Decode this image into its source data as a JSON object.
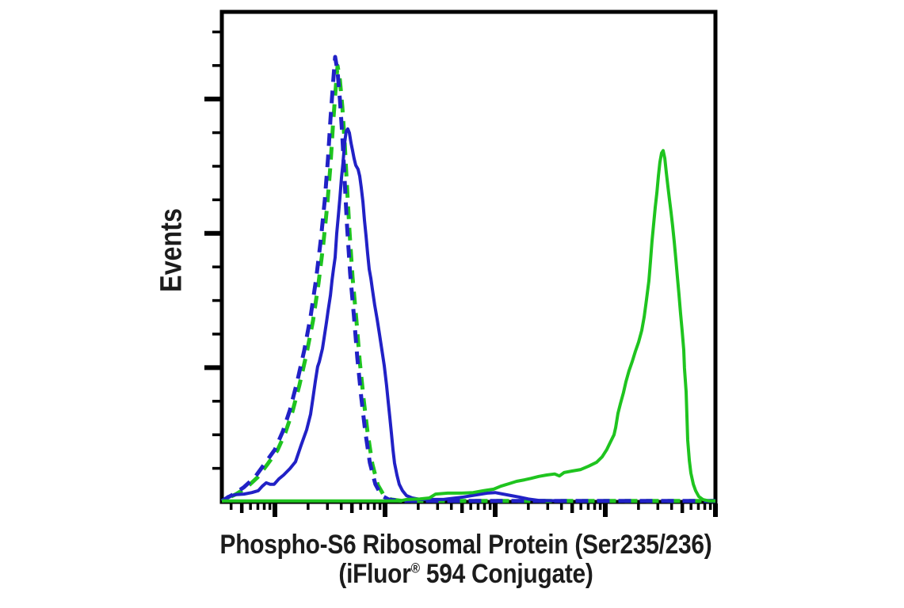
{
  "labels": {
    "ylabel": "Events",
    "xlabel_line1": "Phospho-S6 Ribosomal Protein (Ser235/236)",
    "xlabel_line2_pre": "(iFluor",
    "xlabel_reg_mark": "®",
    "xlabel_line2_post": " 594 Conjugate)"
  },
  "chart_data": {
    "type": "line",
    "subtype": "flow-cytometry-histogram-overlay",
    "title": "",
    "xlabel": "Phospho-S6 Ribosomal Protein (Ser235/236) (iFluor® 594 Conjugate)",
    "ylabel": "Events",
    "background": "#ffffff",
    "axis_color": "#000000",
    "legend": "none",
    "grid": false,
    "x_axis": {
      "scale": "log10",
      "visible_range_log": [
        0.518,
        5.0
      ],
      "major_tick_logs": [
        1,
        2,
        3,
        4,
        5
      ],
      "minor_ticks": "log decades 2-9, with 5 emphasized",
      "tick_labels_shown": false
    },
    "y_axis": {
      "scale": "linear",
      "range_fraction": [
        0,
        1
      ],
      "minor_tick_step_fraction": 0.0685,
      "major_every_n_minor": 4,
      "tick_labels_shown": false
    },
    "series": [
      {
        "id": "green-dashed",
        "name": "Green dashed histogram (overlaps blue dashed, left peak)",
        "color": "#1fc41f",
        "dashed": true,
        "dash_offset": 14,
        "peak": {
          "x_log": 1.57,
          "y_fraction": 0.89
        },
        "points": [
          [
            0.518,
            0.002
          ],
          [
            0.648,
            0.016
          ],
          [
            0.741,
            0.029
          ],
          [
            0.842,
            0.05
          ],
          [
            0.936,
            0.078
          ],
          [
            1.022,
            0.105
          ],
          [
            1.094,
            0.141
          ],
          [
            1.159,
            0.184
          ],
          [
            1.223,
            0.239
          ],
          [
            1.288,
            0.303
          ],
          [
            1.346,
            0.37
          ],
          [
            1.396,
            0.446
          ],
          [
            1.439,
            0.525
          ],
          [
            1.475,
            0.605
          ],
          [
            1.504,
            0.687
          ],
          [
            1.526,
            0.765
          ],
          [
            1.547,
            0.829
          ],
          [
            1.562,
            0.873
          ],
          [
            1.569,
            0.89
          ],
          [
            1.59,
            0.861
          ],
          [
            1.612,
            0.806
          ],
          [
            1.634,
            0.731
          ],
          [
            1.655,
            0.643
          ],
          [
            1.677,
            0.553
          ],
          [
            1.705,
            0.458
          ],
          [
            1.74,
            0.37
          ],
          [
            1.77,
            0.288
          ],
          [
            1.806,
            0.209
          ],
          [
            1.842,
            0.141
          ],
          [
            1.884,
            0.078
          ],
          [
            1.934,
            0.035
          ],
          [
            1.99,
            0.013
          ],
          [
            2.055,
            0.005
          ],
          [
            2.16,
            0.002
          ],
          [
            5.0,
            0.002
          ]
        ]
      },
      {
        "id": "blue-dashed",
        "name": "Blue dashed histogram (overlaps green dashed, left peak)",
        "color": "#2121c6",
        "dashed": true,
        "dash_offset": 0,
        "peak": {
          "x_log": 1.547,
          "y_fraction": 0.908
        },
        "points": [
          [
            0.518,
            0.002
          ],
          [
            0.626,
            0.016
          ],
          [
            0.719,
            0.03
          ],
          [
            0.82,
            0.051
          ],
          [
            0.914,
            0.08
          ],
          [
            1.0,
            0.107
          ],
          [
            1.072,
            0.144
          ],
          [
            1.137,
            0.188
          ],
          [
            1.201,
            0.244
          ],
          [
            1.266,
            0.309
          ],
          [
            1.324,
            0.378
          ],
          [
            1.374,
            0.455
          ],
          [
            1.417,
            0.536
          ],
          [
            1.453,
            0.617
          ],
          [
            1.482,
            0.701
          ],
          [
            1.504,
            0.781
          ],
          [
            1.525,
            0.846
          ],
          [
            1.54,
            0.891
          ],
          [
            1.547,
            0.908
          ],
          [
            1.568,
            0.879
          ],
          [
            1.59,
            0.822
          ],
          [
            1.612,
            0.746
          ],
          [
            1.633,
            0.656
          ],
          [
            1.655,
            0.564
          ],
          [
            1.683,
            0.467
          ],
          [
            1.718,
            0.378
          ],
          [
            1.748,
            0.294
          ],
          [
            1.784,
            0.213
          ],
          [
            1.82,
            0.144
          ],
          [
            1.862,
            0.08
          ],
          [
            1.912,
            0.036
          ],
          [
            1.968,
            0.013
          ],
          [
            2.033,
            0.005
          ],
          [
            2.137,
            0.002
          ],
          [
            5.0,
            0.002
          ]
        ]
      },
      {
        "id": "blue-solid",
        "name": "Blue solid histogram (left peak)",
        "color": "#2121c6",
        "dashed": false,
        "peak": {
          "x_log": 1.655,
          "y_fraction": 0.761
        },
        "points": [
          [
            0.518,
            0.002
          ],
          [
            0.576,
            0.011
          ],
          [
            0.647,
            0.015
          ],
          [
            0.719,
            0.016
          ],
          [
            0.791,
            0.019
          ],
          [
            0.849,
            0.023
          ],
          [
            0.885,
            0.032
          ],
          [
            0.921,
            0.039
          ],
          [
            0.957,
            0.036
          ],
          [
            0.993,
            0.036
          ],
          [
            1.036,
            0.047
          ],
          [
            1.079,
            0.055
          ],
          [
            1.137,
            0.068
          ],
          [
            1.187,
            0.082
          ],
          [
            1.237,
            0.115
          ],
          [
            1.288,
            0.147
          ],
          [
            1.324,
            0.179
          ],
          [
            1.345,
            0.212
          ],
          [
            1.367,
            0.246
          ],
          [
            1.388,
            0.276
          ],
          [
            1.403,
            0.286
          ],
          [
            1.432,
            0.313
          ],
          [
            1.446,
            0.334
          ],
          [
            1.468,
            0.367
          ],
          [
            1.482,
            0.389
          ],
          [
            1.504,
            0.422
          ],
          [
            1.518,
            0.451
          ],
          [
            1.532,
            0.475
          ],
          [
            1.547,
            0.499
          ],
          [
            1.561,
            0.548
          ],
          [
            1.576,
            0.585
          ],
          [
            1.59,
            0.62
          ],
          [
            1.604,
            0.661
          ],
          [
            1.619,
            0.693
          ],
          [
            1.633,
            0.733
          ],
          [
            1.647,
            0.756
          ],
          [
            1.662,
            0.761
          ],
          [
            1.676,
            0.753
          ],
          [
            1.691,
            0.733
          ],
          [
            1.705,
            0.717
          ],
          [
            1.719,
            0.701
          ],
          [
            1.734,
            0.687
          ],
          [
            1.755,
            0.679
          ],
          [
            1.77,
            0.665
          ],
          [
            1.784,
            0.641
          ],
          [
            1.799,
            0.612
          ],
          [
            1.813,
            0.575
          ],
          [
            1.827,
            0.543
          ],
          [
            1.842,
            0.507
          ],
          [
            1.856,
            0.475
          ],
          [
            1.871,
            0.456
          ],
          [
            1.885,
            0.434
          ],
          [
            1.906,
            0.402
          ],
          [
            1.928,
            0.373
          ],
          [
            1.95,
            0.342
          ],
          [
            1.971,
            0.31
          ],
          [
            1.993,
            0.278
          ],
          [
            2.014,
            0.238
          ],
          [
            2.029,
            0.204
          ],
          [
            2.043,
            0.173
          ],
          [
            2.058,
            0.139
          ],
          [
            2.072,
            0.107
          ],
          [
            2.086,
            0.079
          ],
          [
            2.108,
            0.055
          ],
          [
            2.129,
            0.036
          ],
          [
            2.158,
            0.023
          ],
          [
            2.194,
            0.013
          ],
          [
            2.245,
            0.008
          ],
          [
            2.317,
            0.005
          ],
          [
            2.532,
            0.005
          ],
          [
            2.712,
            0.01
          ],
          [
            2.82,
            0.014
          ],
          [
            2.928,
            0.018
          ],
          [
            3.0,
            0.019
          ],
          [
            3.072,
            0.016
          ],
          [
            3.144,
            0.013
          ],
          [
            3.216,
            0.01
          ],
          [
            3.302,
            0.006
          ],
          [
            3.396,
            0.003
          ],
          [
            3.633,
            0.002
          ]
        ]
      },
      {
        "id": "green-solid",
        "name": "Green solid histogram (right peak)",
        "color": "#1fc41f",
        "dashed": false,
        "peak": {
          "x_log": 4.525,
          "y_fraction": 0.717
        },
        "points": [
          [
            0.518,
            0.002
          ],
          [
            2.137,
            0.002
          ],
          [
            2.194,
            0.005
          ],
          [
            2.317,
            0.006
          ],
          [
            2.403,
            0.008
          ],
          [
            2.46,
            0.016
          ],
          [
            2.568,
            0.018
          ],
          [
            2.698,
            0.018
          ],
          [
            2.799,
            0.019
          ],
          [
            2.892,
            0.023
          ],
          [
            2.986,
            0.026
          ],
          [
            3.05,
            0.032
          ],
          [
            3.122,
            0.037
          ],
          [
            3.194,
            0.042
          ],
          [
            3.266,
            0.045
          ],
          [
            3.324,
            0.048
          ],
          [
            3.396,
            0.052
          ],
          [
            3.468,
            0.055
          ],
          [
            3.54,
            0.057
          ],
          [
            3.583,
            0.053
          ],
          [
            3.626,
            0.06
          ],
          [
            3.698,
            0.063
          ],
          [
            3.777,
            0.066
          ],
          [
            3.849,
            0.073
          ],
          [
            3.921,
            0.081
          ],
          [
            3.971,
            0.092
          ],
          [
            4.014,
            0.107
          ],
          [
            4.05,
            0.124
          ],
          [
            4.079,
            0.137
          ],
          [
            4.094,
            0.152
          ],
          [
            4.108,
            0.171
          ],
          [
            4.115,
            0.181
          ],
          [
            4.137,
            0.2
          ],
          [
            4.165,
            0.223
          ],
          [
            4.187,
            0.245
          ],
          [
            4.216,
            0.268
          ],
          [
            4.245,
            0.287
          ],
          [
            4.273,
            0.307
          ],
          [
            4.302,
            0.326
          ],
          [
            4.331,
            0.35
          ],
          [
            4.353,
            0.378
          ],
          [
            4.374,
            0.413
          ],
          [
            4.396,
            0.451
          ],
          [
            4.41,
            0.491
          ],
          [
            4.424,
            0.531
          ],
          [
            4.439,
            0.567
          ],
          [
            4.453,
            0.601
          ],
          [
            4.468,
            0.631
          ],
          [
            4.482,
            0.665
          ],
          [
            4.496,
            0.693
          ],
          [
            4.511,
            0.712
          ],
          [
            4.525,
            0.717
          ],
          [
            4.54,
            0.701
          ],
          [
            4.554,
            0.672
          ],
          [
            4.568,
            0.644
          ],
          [
            4.583,
            0.617
          ],
          [
            4.597,
            0.591
          ],
          [
            4.611,
            0.564
          ],
          [
            4.626,
            0.531
          ],
          [
            4.64,
            0.496
          ],
          [
            4.655,
            0.459
          ],
          [
            4.669,
            0.423
          ],
          [
            4.683,
            0.386
          ],
          [
            4.698,
            0.349
          ],
          [
            4.712,
            0.31
          ],
          [
            4.719,
            0.273
          ],
          [
            4.734,
            0.225
          ],
          [
            4.741,
            0.176
          ],
          [
            4.748,
            0.126
          ],
          [
            4.763,
            0.084
          ],
          [
            4.777,
            0.059
          ],
          [
            4.799,
            0.036
          ],
          [
            4.82,
            0.023
          ],
          [
            4.849,
            0.011
          ],
          [
            4.885,
            0.005
          ],
          [
            4.942,
            0.002
          ],
          [
            5.0,
            0.002
          ]
        ]
      }
    ]
  }
}
